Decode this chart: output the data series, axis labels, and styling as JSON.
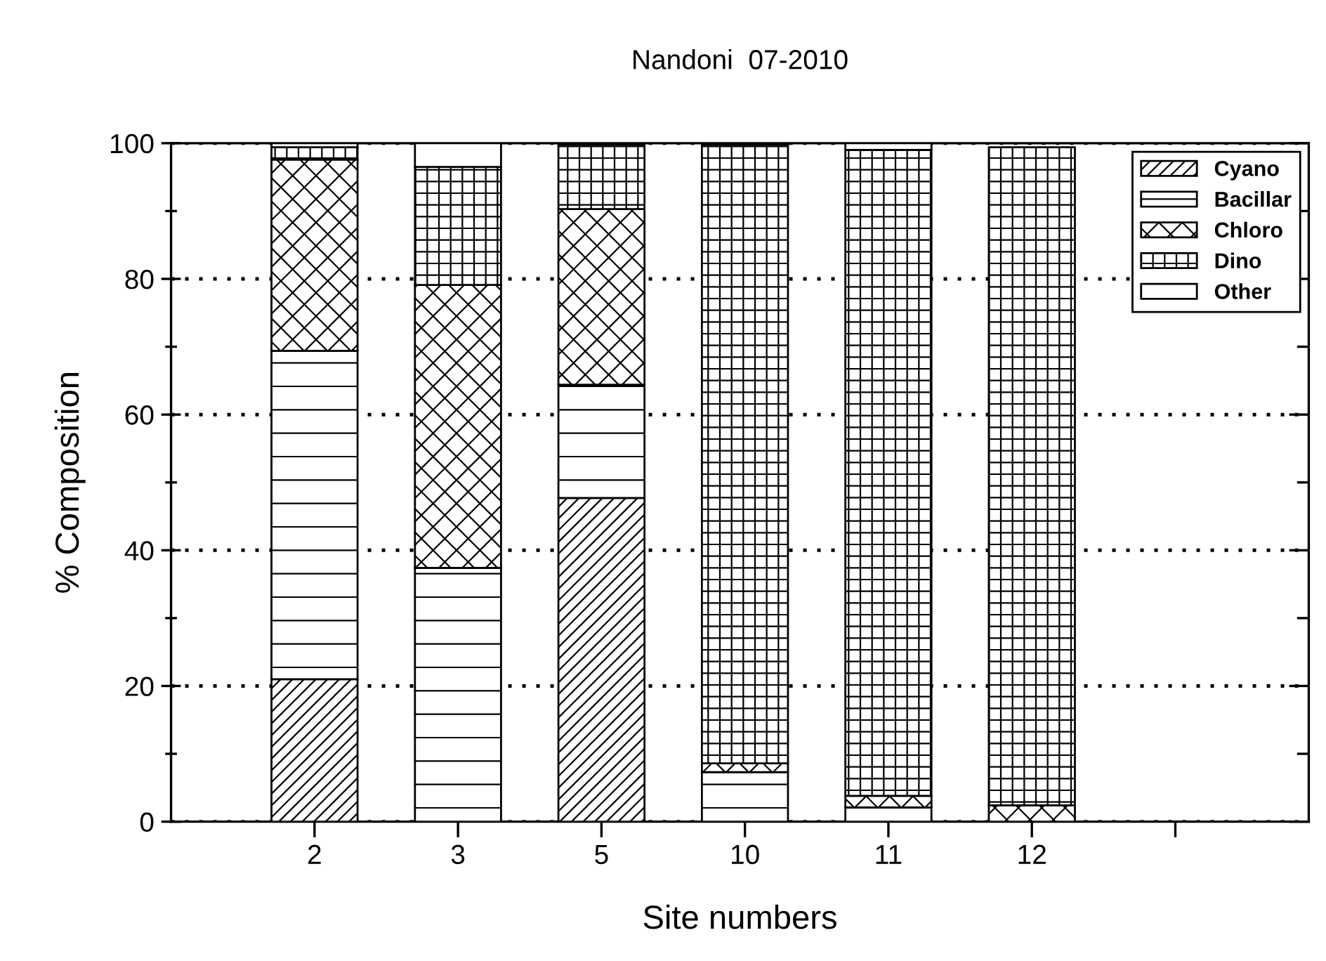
{
  "chart_data": {
    "type": "bar",
    "title": "Nandoni  07-2010",
    "xlabel": "Site numbers",
    "ylabel": "% Composition",
    "categories": [
      "2",
      "3",
      "5",
      "10",
      "11",
      "12",
      null
    ],
    "stacked": true,
    "series": [
      {
        "name": "Cyano",
        "color": "#000000",
        "values": [
          21,
          0,
          47.7,
          0,
          0,
          0,
          null
        ]
      },
      {
        "name": "Bacillar",
        "color": "#000000",
        "values": [
          48.4,
          37.4,
          16.7,
          7.3,
          2.1,
          0,
          null
        ]
      },
      {
        "name": "Chloro",
        "color": "#000000",
        "values": [
          28.2,
          41.7,
          25.9,
          1.3,
          1.7,
          2.4,
          null
        ]
      },
      {
        "name": "Dino",
        "color": "#000000",
        "values": [
          1.8,
          17.4,
          9.5,
          91.2,
          95.2,
          97.0,
          null
        ]
      },
      {
        "name": "Other",
        "color": "#ffffff",
        "values": [
          0.6,
          3.5,
          0.2,
          0.2,
          1.0,
          null,
          null
        ]
      }
    ],
    "ylim": [
      0,
      100
    ],
    "yticks": [
      0,
      {
        "value": 10,
        "label": null
      },
      20,
      {
        "value": 30,
        "label": null
      },
      40,
      {
        "value": 50,
        "label": null
      },
      60,
      {
        "value": 70,
        "label": null
      },
      80,
      {
        "value": 90,
        "label": null
      },
      100
    ],
    "grid": "y",
    "legend": "top right"
  }
}
